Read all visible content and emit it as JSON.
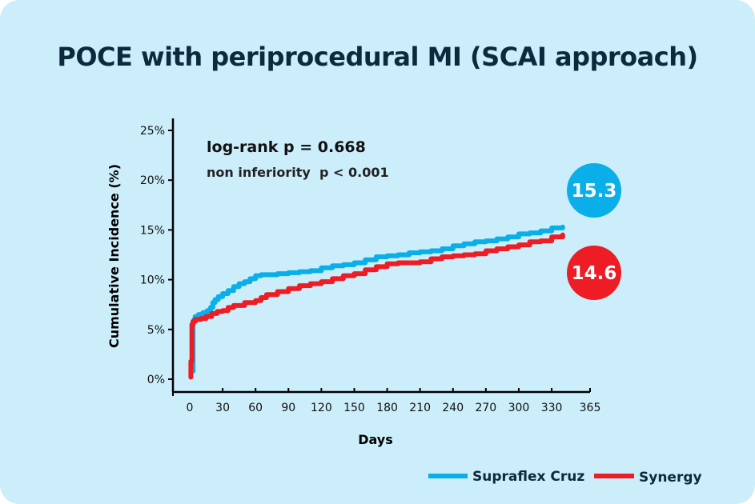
{
  "chart_data": {
    "type": "line",
    "subtype": "kaplan-meier step curve",
    "title": "POCE with periprocedural MI (SCAI approach)",
    "xlabel": "Days",
    "ylabel": "Cumulative Incidence (%)",
    "xlim": [
      0,
      365
    ],
    "ylim": [
      0,
      25
    ],
    "x_ticks": [
      0,
      30,
      60,
      90,
      120,
      150,
      180,
      210,
      240,
      270,
      300,
      330,
      365
    ],
    "x_tick_labels": [
      "0",
      "30",
      "60",
      "90",
      "120",
      "150",
      "180",
      "210",
      "240",
      "270",
      "300",
      "330",
      "365"
    ],
    "y_ticks": [
      0,
      5,
      10,
      15,
      20,
      25
    ],
    "y_tick_labels": [
      "0%",
      "5%",
      "10%",
      "15%",
      "20%",
      "25%"
    ],
    "grid": false,
    "legend_position": "bottom-right",
    "annotations": [
      "log-rank p = 0.668",
      "non inferiority  p < 0.001"
    ],
    "series": [
      {
        "name": "Supraflex Cruz",
        "color": "#0aaee8",
        "end_value_label": "15.3",
        "x": [
          3,
          3,
          3,
          4,
          5,
          8,
          12,
          16,
          19,
          21,
          23,
          26,
          30,
          35,
          40,
          45,
          50,
          55,
          60,
          65,
          70,
          80,
          90,
          100,
          110,
          120,
          130,
          140,
          150,
          160,
          170,
          180,
          190,
          200,
          210,
          220,
          230,
          240,
          250,
          260,
          270,
          280,
          290,
          300,
          310,
          320,
          330,
          340
        ],
        "y": [
          0.8,
          5.3,
          5.8,
          6.0,
          6.3,
          6.5,
          6.7,
          6.9,
          7.2,
          7.7,
          8.0,
          8.3,
          8.6,
          8.9,
          9.3,
          9.6,
          9.8,
          10.1,
          10.4,
          10.5,
          10.5,
          10.6,
          10.7,
          10.8,
          10.9,
          11.2,
          11.4,
          11.5,
          11.7,
          12.0,
          12.3,
          12.4,
          12.5,
          12.7,
          12.8,
          12.9,
          13.1,
          13.4,
          13.6,
          13.8,
          13.9,
          14.1,
          14.3,
          14.6,
          14.7,
          14.9,
          15.2,
          15.3
        ]
      },
      {
        "name": "Synergy",
        "color": "#ee1c24",
        "end_value_label": "14.6",
        "x": [
          1,
          1,
          2,
          2,
          3,
          3,
          5,
          10,
          15,
          20,
          25,
          30,
          35,
          40,
          50,
          60,
          65,
          70,
          80,
          90,
          100,
          110,
          120,
          130,
          140,
          150,
          160,
          170,
          180,
          190,
          200,
          210,
          220,
          230,
          240,
          250,
          260,
          270,
          280,
          290,
          300,
          310,
          320,
          330,
          340
        ],
        "y": [
          0.2,
          1.8,
          1.8,
          5.5,
          5.6,
          5.8,
          6.0,
          6.1,
          6.3,
          6.6,
          6.8,
          6.9,
          7.2,
          7.4,
          7.7,
          7.9,
          8.2,
          8.5,
          8.8,
          9.1,
          9.4,
          9.6,
          9.8,
          10.1,
          10.4,
          10.6,
          11.0,
          11.3,
          11.6,
          11.7,
          11.7,
          11.8,
          12.1,
          12.3,
          12.4,
          12.5,
          12.6,
          12.9,
          13.1,
          13.3,
          13.5,
          13.8,
          13.9,
          14.3,
          14.5
        ]
      }
    ]
  }
}
